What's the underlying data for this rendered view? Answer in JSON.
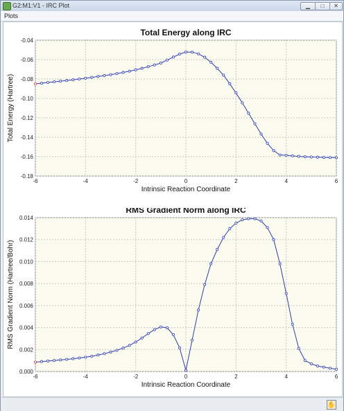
{
  "window": {
    "title": "G2:M1:V1 - IRC Plot",
    "min_label": "▁",
    "max_label": "□",
    "close_label": "✕"
  },
  "menu": {
    "plots_label": "Plots"
  },
  "icons": {
    "app": "app-icon",
    "status": "hand-icon"
  },
  "colors": {
    "line": "#2f3ba8",
    "marker": "#4050c8",
    "first_marker": "#e05060",
    "grid": "#c8c8c8"
  },
  "chart_data": [
    {
      "type": "line",
      "title": "Total Energy along IRC",
      "xlabel": "Intrinsic Reaction Coordinate",
      "ylabel": "Total Energy (Hartree)",
      "xlim": [
        -6,
        6
      ],
      "ylim": [
        -0.18,
        -0.04
      ],
      "xticks": [
        -6,
        -4,
        -2,
        0,
        2,
        4,
        6
      ],
      "yticks": [
        -0.04,
        -0.06,
        -0.08,
        -0.1,
        -0.12,
        -0.14,
        -0.16,
        -0.18
      ],
      "ytick_labels": [
        "-0.04",
        "-0.06",
        "-0.08",
        "-0.10",
        "-0.12",
        "-0.14",
        "-0.16",
        "-0.18"
      ],
      "grid": true,
      "x": [
        -6,
        -5.75,
        -5.5,
        -5.25,
        -5,
        -4.75,
        -4.5,
        -4.25,
        -4,
        -3.75,
        -3.5,
        -3.25,
        -3,
        -2.75,
        -2.5,
        -2.25,
        -2,
        -1.75,
        -1.5,
        -1.25,
        -1,
        -0.75,
        -0.5,
        -0.25,
        0,
        0.25,
        0.5,
        0.75,
        1,
        1.25,
        1.5,
        1.75,
        2,
        2.25,
        2.5,
        2.75,
        3,
        3.25,
        3.5,
        3.75,
        4,
        4.25,
        4.5,
        4.75,
        5,
        5.25,
        5.5,
        5.75,
        6
      ],
      "y": [
        -0.085,
        -0.0843,
        -0.0836,
        -0.0829,
        -0.0822,
        -0.0815,
        -0.0808,
        -0.08,
        -0.0792,
        -0.0783,
        -0.0774,
        -0.0765,
        -0.0755,
        -0.0744,
        -0.0732,
        -0.0719,
        -0.0705,
        -0.069,
        -0.0673,
        -0.0655,
        -0.0636,
        -0.0605,
        -0.0574,
        -0.0543,
        -0.0522,
        -0.0523,
        -0.0541,
        -0.0575,
        -0.0627,
        -0.069,
        -0.076,
        -0.0849,
        -0.0944,
        -0.1046,
        -0.1153,
        -0.1261,
        -0.1367,
        -0.1463,
        -0.1538,
        -0.1583,
        -0.1586,
        -0.1592,
        -0.1597,
        -0.1601,
        -0.1604,
        -0.1606,
        -0.1608,
        -0.1609,
        -0.161
      ]
    },
    {
      "type": "line",
      "title": "RMS Gradient Norm along IRC",
      "xlabel": "Intrinsic Reaction Coordinate",
      "ylabel": "RMS Gradient Norm (Hartree/Bohr)",
      "xlim": [
        -6,
        6
      ],
      "ylim": [
        0,
        0.014
      ],
      "xticks": [
        -6,
        -4,
        -2,
        0,
        2,
        4,
        6
      ],
      "yticks": [
        0,
        0.002,
        0.004,
        0.006,
        0.008,
        0.01,
        0.012,
        0.014
      ],
      "ytick_labels": [
        "0.000",
        "0.002",
        "0.004",
        "0.006",
        "0.008",
        "0.010",
        "0.012",
        "0.014"
      ],
      "grid": true,
      "x": [
        -6,
        -5.75,
        -5.5,
        -5.25,
        -5,
        -4.75,
        -4.5,
        -4.25,
        -4,
        -3.75,
        -3.5,
        -3.25,
        -3,
        -2.75,
        -2.5,
        -2.25,
        -2,
        -1.75,
        -1.5,
        -1.25,
        -1,
        -0.75,
        -0.5,
        -0.25,
        0,
        0.25,
        0.5,
        0.75,
        1,
        1.25,
        1.5,
        1.75,
        2,
        2.25,
        2.5,
        2.75,
        3,
        3.25,
        3.5,
        3.75,
        4,
        4.25,
        4.5,
        4.75,
        5,
        5.25,
        5.5,
        5.75,
        6
      ],
      "y": [
        0.00085,
        0.0009,
        0.00095,
        0.001,
        0.00105,
        0.0011,
        0.00116,
        0.00123,
        0.0013,
        0.00139,
        0.0015,
        0.00162,
        0.00177,
        0.00193,
        0.00213,
        0.00238,
        0.00268,
        0.00305,
        0.00345,
        0.00381,
        0.00405,
        0.00398,
        0.00335,
        0.00215,
        0.0001,
        0.00285,
        0.0056,
        0.0079,
        0.0098,
        0.0111,
        0.0122,
        0.013,
        0.0135,
        0.0138,
        0.0139,
        0.0139,
        0.0137,
        0.0131,
        0.012,
        0.0098,
        0.0071,
        0.0043,
        0.0021,
        0.001,
        0.0007,
        0.0005,
        0.0004,
        0.0003,
        0.0002
      ]
    }
  ]
}
